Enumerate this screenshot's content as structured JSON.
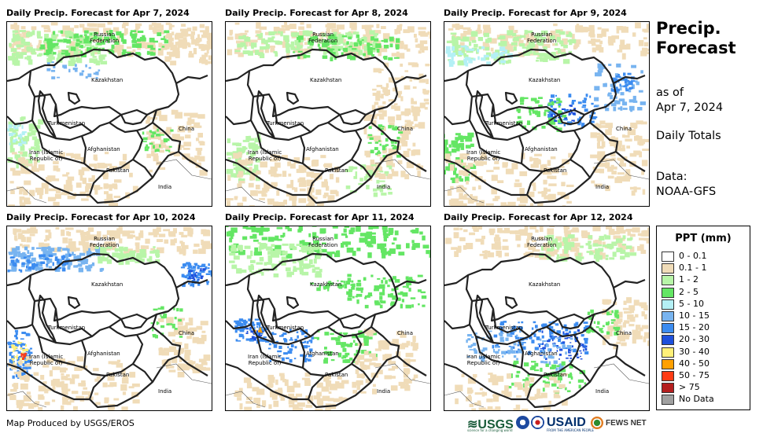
{
  "panels": [
    {
      "title": "Daily Precip. Forecast for Apr 7, 2024"
    },
    {
      "title": "Daily Precip. Forecast for Apr 8, 2024"
    },
    {
      "title": "Daily Precip. Forecast for Apr 9, 2024"
    },
    {
      "title": "Daily Precip. Forecast for Apr 10, 2024"
    },
    {
      "title": "Daily Precip. Forecast for Apr 11, 2024"
    },
    {
      "title": "Daily Precip. Forecast for Apr 12, 2024"
    }
  ],
  "labels": {
    "russia": "Russian\nFederation",
    "kazakhstan": "Kazakhstan",
    "turkmenistan": "Turkmenistan",
    "china": "China",
    "iran": "Iran  (Islamic\nRepublic of)",
    "afghanistan": "Afghanistan",
    "pakistan": "Pakistan",
    "india": "India"
  },
  "sidebar": {
    "title": "Precip.\nForecast",
    "as_of": "as of\nApr 7, 2024",
    "totals": "Daily Totals",
    "source": "Data:\nNOAA-GFS"
  },
  "legend": {
    "title": "PPT (mm)",
    "items": [
      {
        "label": "0 - 0.1",
        "color": "#ffffff"
      },
      {
        "label": "0.1 - 1",
        "color": "#f0dcb8"
      },
      {
        "label": "1 - 2",
        "color": "#b8f5a8"
      },
      {
        "label": "2 - 5",
        "color": "#64e664"
      },
      {
        "label": "5 - 10",
        "color": "#b4f0f5"
      },
      {
        "label": "10 - 15",
        "color": "#78b4f0"
      },
      {
        "label": "15 - 20",
        "color": "#3c8cf0"
      },
      {
        "label": "20 - 30",
        "color": "#1e50dc"
      },
      {
        "label": "30 - 40",
        "color": "#fff078"
      },
      {
        "label": "40 - 50",
        "color": "#ffa000"
      },
      {
        "label": "50 - 75",
        "color": "#ff3c14"
      },
      {
        "label": "> 75",
        "color": "#b41e1e"
      },
      {
        "label": "No Data",
        "color": "#a0a0a0"
      }
    ]
  },
  "footer": "Map Produced by USGS/EROS",
  "logos": {
    "usgs": "≋USGS",
    "usgs_tagline": "science for a changing world",
    "usaid": "USAID",
    "usaid_tagline": "FROM THE AMERICAN PEOPLE",
    "fews": "FEWS NET"
  },
  "map_icons": {
    "seal_noaa": "noaa-seal-icon",
    "seal_nws": "nws-seal-icon",
    "fews_sun": "fews-sun-icon"
  }
}
